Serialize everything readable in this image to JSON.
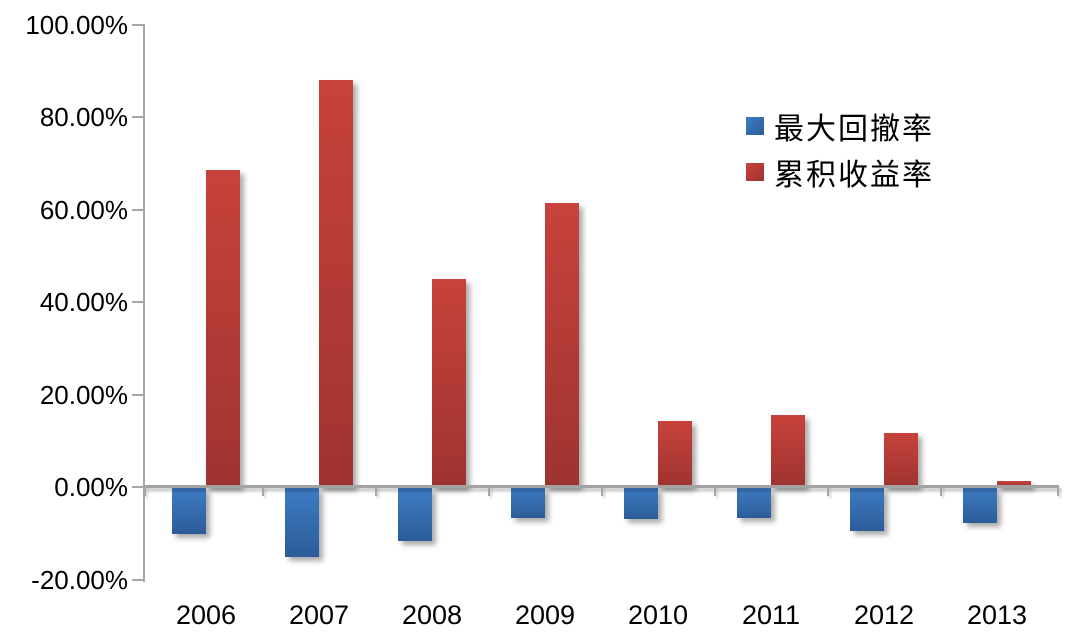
{
  "chart_data": {
    "type": "bar",
    "title": "",
    "categories": [
      "2006",
      "2007",
      "2008",
      "2009",
      "2010",
      "2011",
      "2012",
      "2013"
    ],
    "series": [
      {
        "key": "max-drawdown",
        "name": "最大回撤率",
        "values": [
          -10.0,
          -15.0,
          -11.5,
          -6.5,
          -6.8,
          -6.5,
          -9.3,
          -7.5
        ],
        "color_top": "#3d7cc4",
        "color_bottom": "#2c5c98"
      },
      {
        "key": "cumulative-return",
        "name": "累积收益率",
        "values": [
          68.5,
          88.0,
          45.0,
          61.3,
          14.3,
          15.6,
          11.6,
          1.3
        ],
        "color_top": "#c8423c",
        "color_bottom": "#9e3330"
      }
    ],
    "y_axis": {
      "min": -20,
      "max": 100,
      "step": 20,
      "tick_labels": [
        "100.00%",
        "80.00%",
        "60.00%",
        "40.00%",
        "20.00%",
        "0.00%",
        "-20.00%"
      ]
    },
    "x_axis": {
      "tick_labels": [
        "2006",
        "2007",
        "2008",
        "2009",
        "2010",
        "2011",
        "2012",
        "2013"
      ]
    },
    "legend": {
      "position": "top-right",
      "items": [
        "最大回撤率",
        "累积收益率"
      ]
    },
    "grid": false,
    "axis_color": "#a6a6a6",
    "background_color": "#ffffff"
  }
}
